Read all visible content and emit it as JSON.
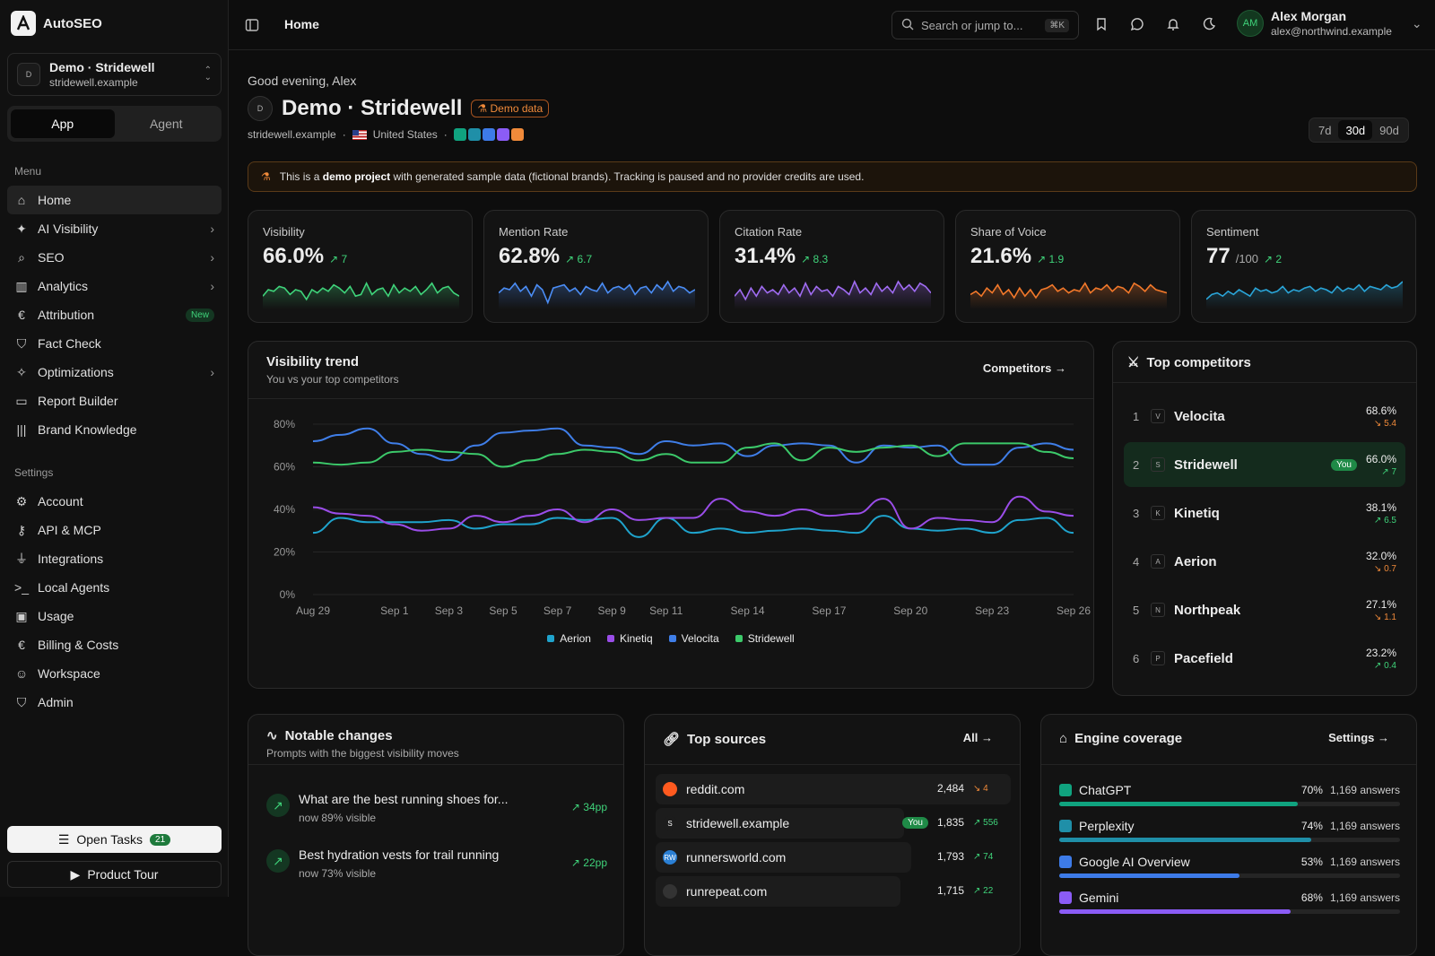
{
  "app": {
    "name": "AutoSEO"
  },
  "project": {
    "name": "Demo · Stridewell",
    "domain": "stridewell.example",
    "initial": "D"
  },
  "mode": {
    "app_label": "App",
    "agent_label": "Agent"
  },
  "menu": {
    "heading": "Menu",
    "items": [
      {
        "label": "Home",
        "icon": "home-icon"
      },
      {
        "label": "AI Visibility",
        "icon": "sparkles-icon"
      },
      {
        "label": "SEO",
        "icon": "search-icon"
      },
      {
        "label": "Analytics",
        "icon": "bar-chart-icon"
      },
      {
        "label": "Attribution",
        "icon": "euro-icon",
        "badge": "New"
      },
      {
        "label": "Fact Check",
        "icon": "shield-check-icon"
      },
      {
        "label": "Optimizations",
        "icon": "wand-icon"
      },
      {
        "label": "Report Builder",
        "icon": "presentation-icon"
      },
      {
        "label": "Brand Knowledge",
        "icon": "library-icon"
      }
    ]
  },
  "settings": {
    "heading": "Settings",
    "items": [
      {
        "label": "Account",
        "icon": "gear-icon"
      },
      {
        "label": "API & MCP",
        "icon": "key-icon"
      },
      {
        "label": "Integrations",
        "icon": "plug-icon"
      },
      {
        "label": "Local Agents",
        "icon": "terminal-icon"
      },
      {
        "label": "Usage",
        "icon": "wallet-icon"
      },
      {
        "label": "Billing & Costs",
        "icon": "euro-icon"
      },
      {
        "label": "Workspace",
        "icon": "users-icon"
      },
      {
        "label": "Admin",
        "icon": "shield-icon"
      }
    ]
  },
  "footer": {
    "tasks_label": "Open Tasks",
    "tasks_count": "21",
    "tour_label": "Product Tour"
  },
  "topbar": {
    "title": "Home",
    "search_placeholder": "Search or jump to...",
    "search_kbd": "⌘K"
  },
  "user": {
    "name": "Alex Morgan",
    "email": "alex@northwind.example",
    "initials": "AM"
  },
  "page": {
    "greeting": "Good evening, Alex",
    "title": "Demo · Stridewell",
    "avatar": "D",
    "badge": "Demo data",
    "domain": "stridewell.example",
    "country": "United States",
    "ranges": [
      "7d",
      "30d",
      "90d"
    ],
    "active_range": "30d"
  },
  "banner": {
    "pre": "This is a ",
    "bold": "demo project",
    "post": " with generated sample data (fictional brands). Tracking is paused and no provider credits are used."
  },
  "kpis": [
    {
      "label": "Visibility",
      "value": "66.0%",
      "unit": "",
      "delta": "7",
      "color": "#3fd37a",
      "spark": [
        0.3,
        0.5,
        0.45,
        0.6,
        0.55,
        0.35,
        0.5,
        0.45,
        0.2,
        0.5,
        0.4,
        0.55,
        0.45,
        0.65,
        0.55,
        0.4,
        0.6,
        0.3,
        0.35,
        0.7,
        0.35,
        0.5,
        0.55,
        0.3,
        0.65,
        0.4,
        0.55,
        0.45,
        0.6,
        0.35,
        0.5,
        0.7,
        0.4,
        0.55,
        0.6,
        0.4,
        0.3
      ]
    },
    {
      "label": "Mention Rate",
      "value": "62.8%",
      "unit": "",
      "delta": "6.7",
      "color": "#4b8df5",
      "spark": [
        0.4,
        0.55,
        0.5,
        0.7,
        0.45,
        0.6,
        0.3,
        0.65,
        0.5,
        0.1,
        0.55,
        0.6,
        0.65,
        0.45,
        0.55,
        0.35,
        0.6,
        0.5,
        0.45,
        0.7,
        0.4,
        0.55,
        0.6,
        0.5,
        0.65,
        0.35,
        0.55,
        0.6,
        0.4,
        0.65,
        0.5,
        0.75,
        0.45,
        0.6,
        0.55,
        0.4,
        0.5
      ]
    },
    {
      "label": "Citation Rate",
      "value": "31.4%",
      "unit": "",
      "delta": "8.3",
      "color": "#a06cf2",
      "spark": [
        0.3,
        0.5,
        0.2,
        0.55,
        0.3,
        0.6,
        0.4,
        0.5,
        0.35,
        0.65,
        0.4,
        0.55,
        0.3,
        0.7,
        0.35,
        0.6,
        0.45,
        0.5,
        0.3,
        0.6,
        0.5,
        0.35,
        0.75,
        0.4,
        0.55,
        0.35,
        0.7,
        0.45,
        0.6,
        0.4,
        0.75,
        0.5,
        0.65,
        0.45,
        0.7,
        0.6,
        0.4
      ]
    },
    {
      "label": "Share of Voice",
      "value": "21.6%",
      "unit": "",
      "delta": "1.9",
      "color": "#f2782a",
      "spark": [
        0.35,
        0.45,
        0.3,
        0.55,
        0.4,
        0.65,
        0.35,
        0.5,
        0.25,
        0.55,
        0.3,
        0.5,
        0.25,
        0.5,
        0.55,
        0.65,
        0.45,
        0.55,
        0.4,
        0.5,
        0.45,
        0.7,
        0.4,
        0.55,
        0.5,
        0.65,
        0.45,
        0.6,
        0.55,
        0.4,
        0.7,
        0.6,
        0.45,
        0.65,
        0.5,
        0.45,
        0.4
      ]
    },
    {
      "label": "Sentiment",
      "value": "77",
      "unit": "/100",
      "delta": "2",
      "color": "#2aa5d8",
      "spark": [
        0.2,
        0.35,
        0.4,
        0.3,
        0.45,
        0.35,
        0.5,
        0.4,
        0.3,
        0.55,
        0.45,
        0.5,
        0.4,
        0.45,
        0.6,
        0.4,
        0.5,
        0.45,
        0.55,
        0.6,
        0.45,
        0.55,
        0.5,
        0.4,
        0.6,
        0.45,
        0.55,
        0.5,
        0.65,
        0.45,
        0.6,
        0.55,
        0.5,
        0.65,
        0.55,
        0.6,
        0.75
      ]
    }
  ],
  "trend": {
    "title": "Visibility trend",
    "subtitle": "You vs your top competitors",
    "link": "Competitors"
  },
  "chart_data": {
    "type": "line",
    "x": [
      "Aug 29",
      "Aug 30",
      "Aug 31",
      "Sep 1",
      "Sep 2",
      "Sep 3",
      "Sep 4",
      "Sep 5",
      "Sep 6",
      "Sep 7",
      "Sep 8",
      "Sep 9",
      "Sep 10",
      "Sep 11",
      "Sep 12",
      "Sep 13",
      "Sep 14",
      "Sep 15",
      "Sep 16",
      "Sep 17",
      "Sep 18",
      "Sep 19",
      "Sep 20",
      "Sep 21",
      "Sep 22",
      "Sep 23",
      "Sep 24",
      "Sep 25",
      "Sep 26"
    ],
    "xticks": [
      "Aug 29",
      "Sep 1",
      "Sep 3",
      "Sep 5",
      "Sep 7",
      "Sep 9",
      "Sep 11",
      "Sep 14",
      "Sep 17",
      "Sep 20",
      "Sep 23",
      "Sep 26"
    ],
    "yticks": [
      "0%",
      "20%",
      "40%",
      "60%",
      "80%"
    ],
    "ylim": [
      0,
      80
    ],
    "series": [
      {
        "name": "Aerion",
        "color": "#1fa3cc",
        "values": [
          29,
          36,
          34,
          34,
          34,
          35,
          31,
          33,
          33,
          36,
          35,
          36,
          27,
          36,
          29,
          31,
          29,
          30,
          31,
          30,
          29,
          37,
          31,
          30,
          31,
          29,
          35,
          36,
          29
        ]
      },
      {
        "name": "Kinetiq",
        "color": "#9a4de8",
        "values": [
          41,
          38,
          37,
          33,
          30,
          31,
          37,
          34,
          37,
          40,
          34,
          40,
          35,
          36,
          36,
          45,
          39,
          37,
          40,
          37,
          38,
          45,
          31,
          36,
          35,
          34,
          46,
          39,
          37
        ]
      },
      {
        "name": "Velocita",
        "color": "#3f7ee8",
        "values": [
          72,
          75,
          78,
          71,
          66,
          63,
          70,
          76,
          77,
          78,
          70,
          69,
          66,
          72,
          70,
          71,
          65,
          70,
          71,
          70,
          62,
          70,
          69,
          70,
          61,
          61,
          69,
          71,
          68
        ]
      },
      {
        "name": "Stridewell",
        "color": "#3cc96a",
        "values": [
          62,
          61,
          62,
          67,
          68,
          67,
          66,
          60,
          63,
          66,
          68,
          67,
          63,
          66,
          62,
          62,
          69,
          71,
          63,
          69,
          67,
          69,
          70,
          65,
          71,
          71,
          71,
          67,
          64
        ]
      }
    ]
  },
  "competitors": {
    "title": "Top competitors",
    "you_label": "You",
    "items": [
      {
        "rank": "1",
        "initial": "V",
        "name": "Velocita",
        "value": "68.6%",
        "delta": "5.4",
        "dir": "down"
      },
      {
        "rank": "2",
        "initial": "S",
        "name": "Stridewell",
        "value": "66.0%",
        "delta": "7",
        "dir": "up",
        "you": true
      },
      {
        "rank": "3",
        "initial": "K",
        "name": "Kinetiq",
        "value": "38.1%",
        "delta": "6.5",
        "dir": "up"
      },
      {
        "rank": "4",
        "initial": "A",
        "name": "Aerion",
        "value": "32.0%",
        "delta": "0.7",
        "dir": "down"
      },
      {
        "rank": "5",
        "initial": "N",
        "name": "Northpeak",
        "value": "27.1%",
        "delta": "1.1",
        "dir": "down"
      },
      {
        "rank": "6",
        "initial": "P",
        "name": "Pacefield",
        "value": "23.2%",
        "delta": "0.4",
        "dir": "up"
      }
    ]
  },
  "notable": {
    "title": "Notable changes",
    "subtitle": "Prompts with the biggest visibility moves",
    "items": [
      {
        "text": "What are the best running shoes for...",
        "sub": "now 89% visible",
        "delta": "34pp"
      },
      {
        "text": "Best hydration vests for trail running",
        "sub": "now 73% visible",
        "delta": "22pp"
      }
    ]
  },
  "sources": {
    "title": "Top sources",
    "link": "All",
    "items": [
      {
        "domain": "reddit.com",
        "count": "2,484",
        "delta": "4",
        "dir": "down",
        "icon_color": "#ff5a1f",
        "fill": 1.0
      },
      {
        "domain": "stridewell.example",
        "count": "1,835",
        "delta": "556",
        "dir": "up",
        "you": true,
        "icon_color": "#1c1c1c",
        "icon_text": "S",
        "fill": 0.7
      },
      {
        "domain": "runnersworld.com",
        "count": "1,793",
        "delta": "74",
        "dir": "up",
        "icon_color": "#2a7fd4",
        "icon_text": "RW",
        "fill": 0.72
      },
      {
        "domain": "runrepeat.com",
        "count": "1,715",
        "delta": "22",
        "dir": "up",
        "icon_color": "#333",
        "fill": 0.69
      }
    ]
  },
  "engines": {
    "title": "Engine coverage",
    "link": "Settings",
    "items": [
      {
        "name": "ChatGPT",
        "pct": "70%",
        "answers": "1,169 answers",
        "color": "#10a37f",
        "fill": 0.7
      },
      {
        "name": "Perplexity",
        "pct": "74%",
        "answers": "1,169 answers",
        "color": "#1f8fa8",
        "fill": 0.74
      },
      {
        "name": "Google AI Overview",
        "pct": "53%",
        "answers": "1,169 answers",
        "color": "#3d7be8",
        "fill": 0.53
      },
      {
        "name": "Gemini",
        "pct": "68%",
        "answers": "1,169 answers",
        "color": "#8b5cf6",
        "fill": 0.68
      }
    ]
  }
}
